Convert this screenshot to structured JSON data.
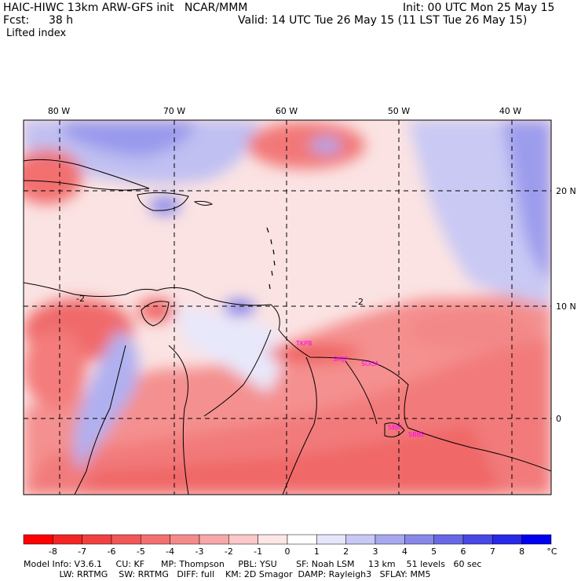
{
  "header": {
    "model_line": "HAIC-HIWC 13km ARW-GFS init   NCAR/MMM",
    "init_line": "Init: 00 UTC Mon 25 May 15",
    "fcst_label": "Fcst:",
    "fcst_value": "38 h",
    "valid_line": "Valid: 14 UTC Tue 26 May 15 (11 LST Tue 26 May 15)",
    "field_name": "Lifted index"
  },
  "map": {
    "lon_labels": [
      "80 W",
      "70 W",
      "60 W",
      "50 W",
      "40 W"
    ],
    "lat_labels": [
      "20 N",
      "10 N",
      "0"
    ],
    "contour_labels": [
      "-2",
      "-2"
    ],
    "stations": [
      "TKPB",
      "SMJP",
      "SOCA",
      "SBJC",
      "SBBE"
    ]
  },
  "colorbar": {
    "ticks": [
      "-8",
      "-7",
      "-6",
      "-5",
      "-4",
      "-3",
      "-2",
      "-1",
      "0",
      "1",
      "2",
      "3",
      "4",
      "5",
      "6",
      "7",
      "8"
    ],
    "unit": "°C",
    "colors": [
      "#ff0000",
      "#f52525",
      "#f24040",
      "#f25757",
      "#f47070",
      "#f58a8a",
      "#f7a8a8",
      "#fac8c8",
      "#fde6e6",
      "#ffffff",
      "#e6e6fb",
      "#c8c8f5",
      "#a8a8ef",
      "#8888ea",
      "#6868e6",
      "#4848e6",
      "#2828e8",
      "#0000f0"
    ]
  },
  "footer": {
    "line1": "Model Info: V3.6.1     CU: KF      MP: Thompson     PBL: YSU       SF: Noah LSM     13 km    51 levels   60 sec",
    "line2": "             LW: RRTMG    SW: RRTMG   DIFF: full    KM: 2D Smagor  DAMP: Rayleigh3   SFLAY: MM5"
  }
}
